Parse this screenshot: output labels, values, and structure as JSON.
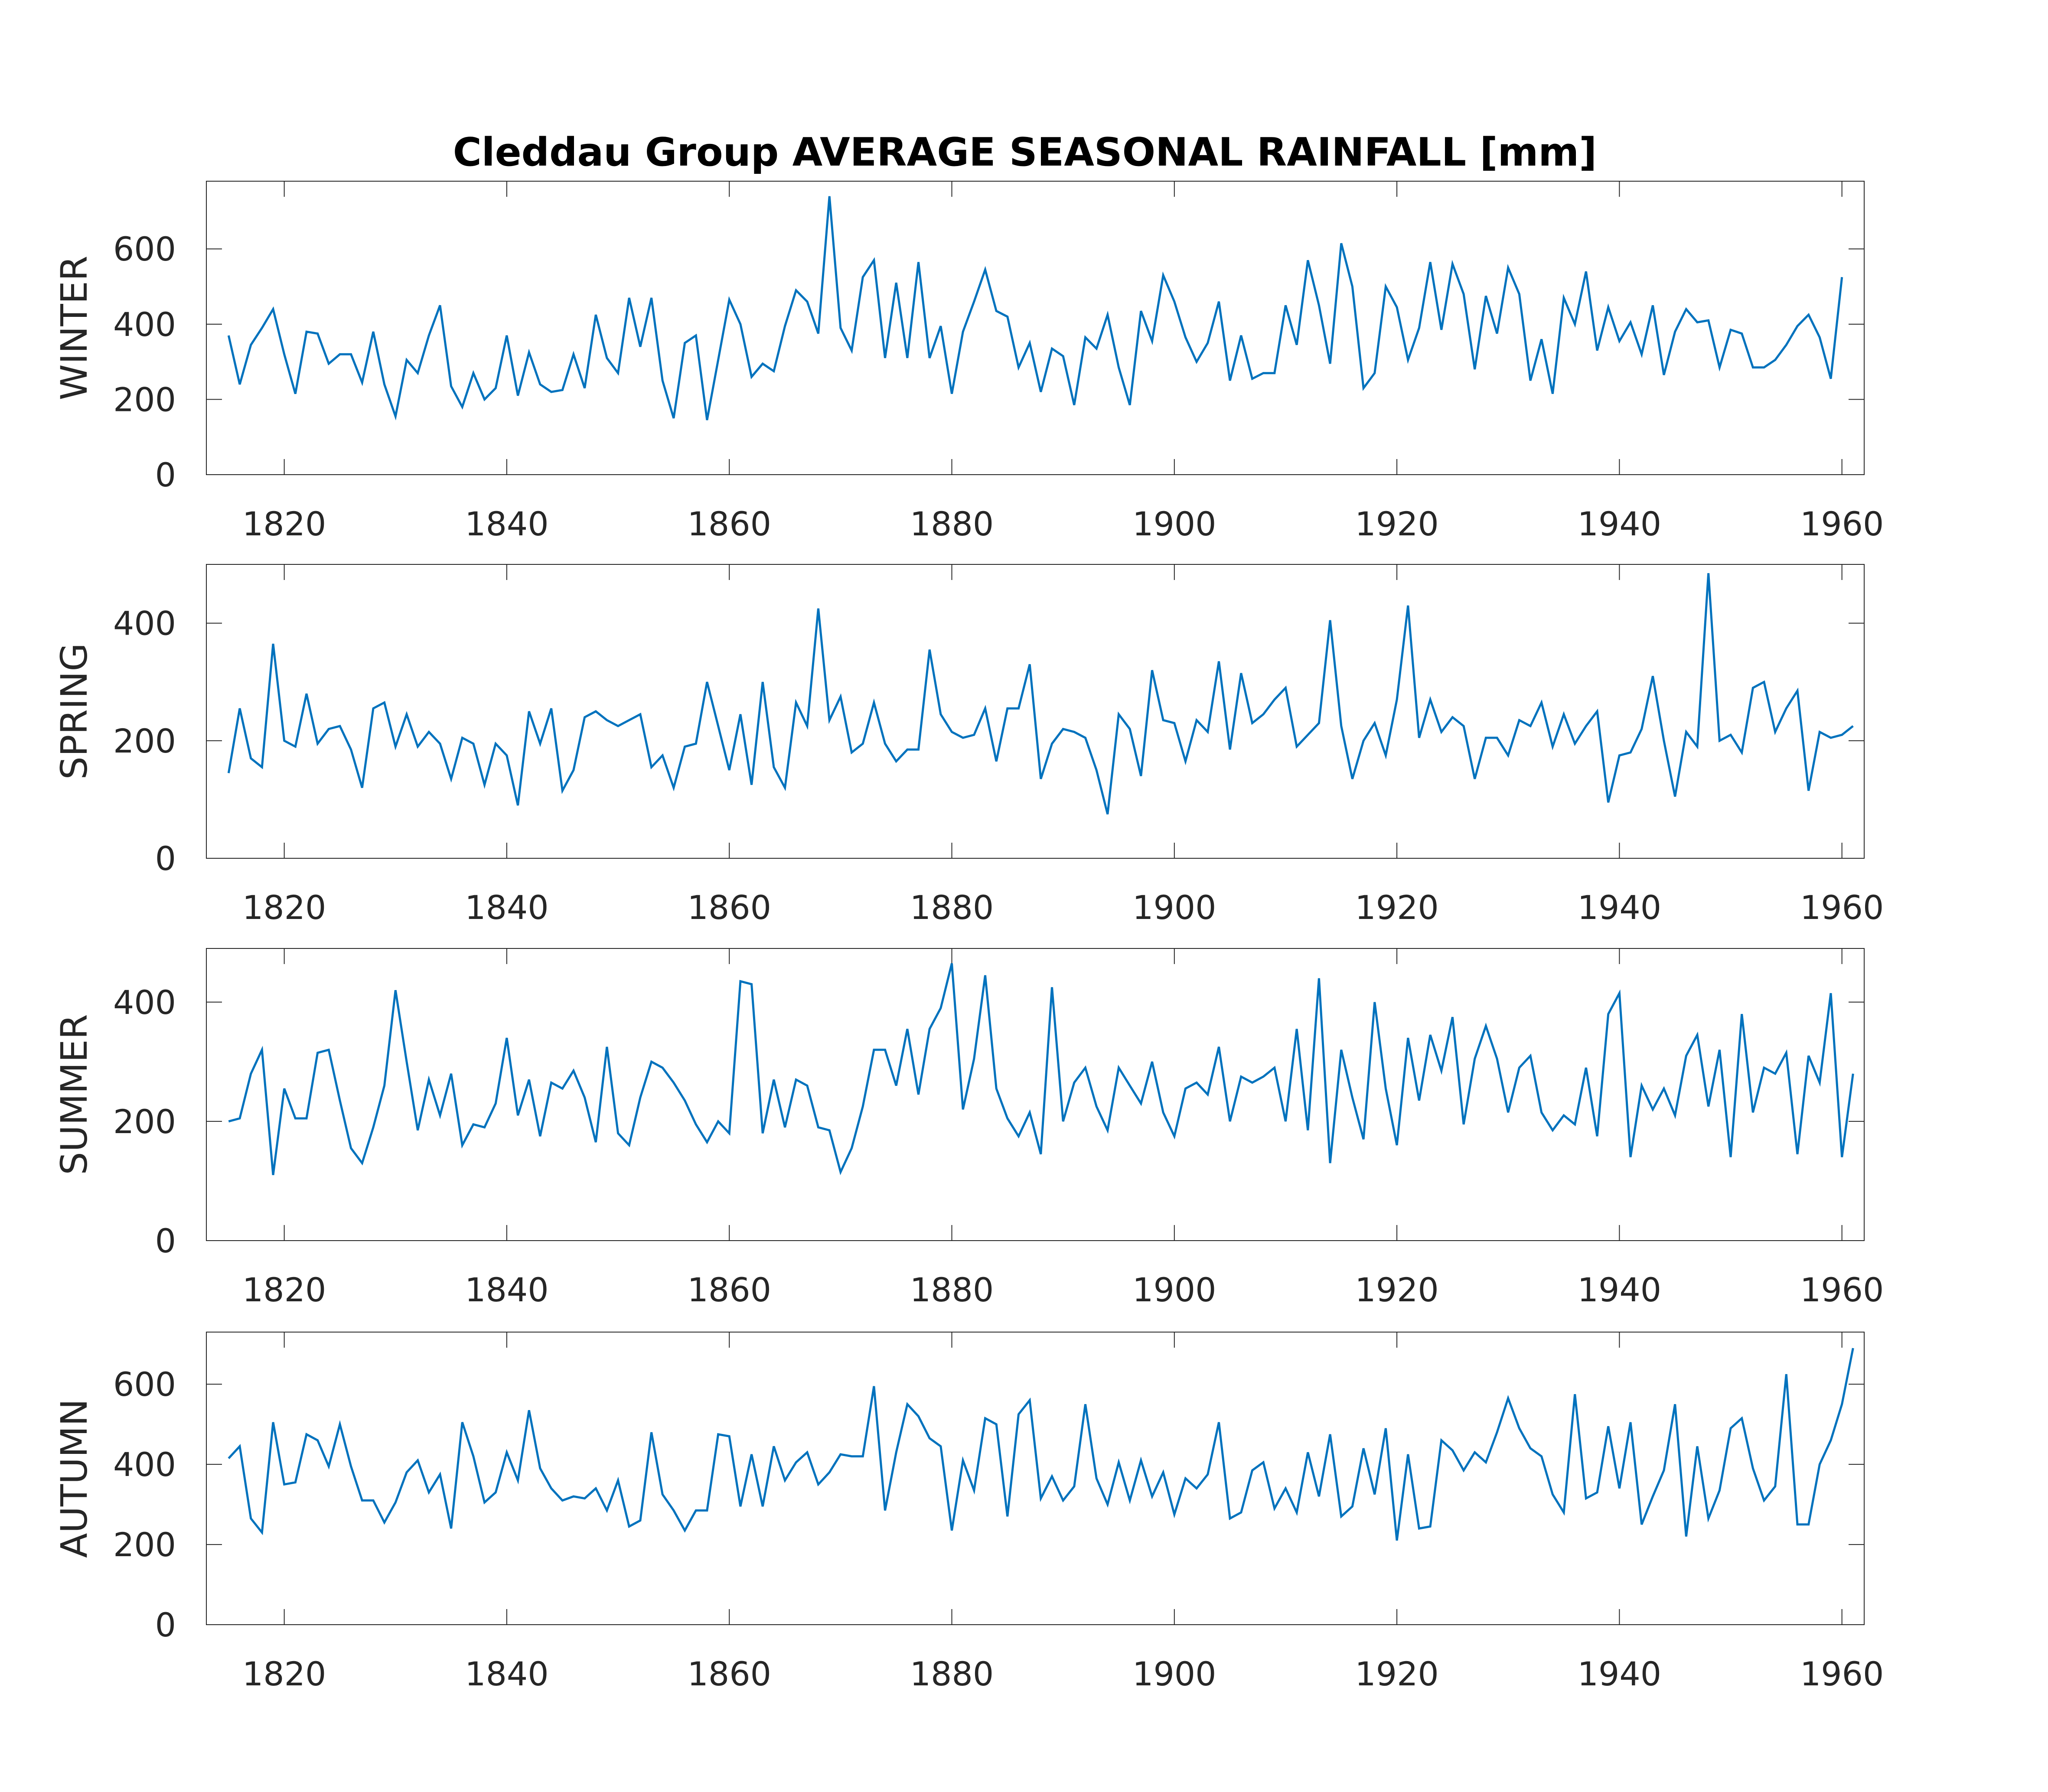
{
  "colors": {
    "series": "#0072bd",
    "axes": "#262626",
    "title": "#000000",
    "background": "#ffffff"
  },
  "chart_data": {
    "type": "line",
    "title": "Cleddau Group AVERAGE SEASONAL RAINFALL [mm]",
    "grid": false,
    "x_start": 1815,
    "x_end": 1960,
    "xlim": [
      1813,
      1962
    ],
    "x_ticks": [
      1820,
      1840,
      1860,
      1880,
      1900,
      1920,
      1940,
      1960
    ],
    "panels": [
      {
        "ylabel": "WINTER",
        "ylim": [
          0,
          780
        ],
        "y_ticks": [
          0,
          200,
          400,
          600
        ],
        "values": [
          370,
          240,
          345,
          390,
          440,
          320,
          215,
          380,
          375,
          295,
          320,
          320,
          245,
          380,
          240,
          155,
          305,
          270,
          370,
          450,
          235,
          180,
          270,
          200,
          230,
          370,
          210,
          325,
          240,
          220,
          225,
          320,
          230,
          425,
          310,
          270,
          470,
          340,
          470,
          250,
          150,
          350,
          370,
          145,
          305,
          465,
          400,
          260,
          295,
          275,
          395,
          490,
          460,
          375,
          740,
          390,
          330,
          525,
          570,
          310,
          510,
          310,
          565,
          310,
          395,
          215,
          380,
          460,
          545,
          435,
          420,
          285,
          350,
          220,
          335,
          315,
          185,
          365,
          335,
          425,
          285,
          185,
          435,
          355,
          530,
          460,
          365,
          300,
          350,
          460,
          250,
          370,
          255,
          270,
          270,
          450,
          345,
          570,
          450,
          295,
          615,
          500,
          230,
          270,
          500,
          445,
          305,
          390,
          565,
          385,
          560,
          480,
          280,
          475,
          375,
          550,
          480,
          250,
          360,
          215,
          470,
          400,
          540,
          330,
          445,
          355,
          405,
          320,
          450,
          265,
          380,
          440,
          405,
          410,
          285,
          385,
          375,
          285,
          285,
          305,
          345,
          395,
          425,
          365,
          255,
          525
        ]
      },
      {
        "ylabel": "SPRING",
        "ylim": [
          0,
          500
        ],
        "y_ticks": [
          0,
          200,
          400
        ],
        "values": [
          145,
          255,
          170,
          155,
          365,
          200,
          190,
          280,
          195,
          220,
          225,
          185,
          120,
          255,
          265,
          190,
          245,
          190,
          215,
          195,
          135,
          205,
          195,
          125,
          195,
          175,
          90,
          250,
          195,
          255,
          115,
          150,
          240,
          250,
          235,
          225,
          235,
          245,
          155,
          175,
          120,
          190,
          195,
          300,
          225,
          150,
          245,
          125,
          300,
          155,
          120,
          265,
          225,
          425,
          235,
          275,
          180,
          195,
          265,
          195,
          165,
          185,
          185,
          355,
          245,
          215,
          205,
          210,
          255,
          165,
          255,
          255,
          330,
          135,
          195,
          220,
          215,
          205,
          150,
          75,
          245,
          220,
          140,
          320,
          235,
          230,
          165,
          235,
          215,
          335,
          185,
          315,
          230,
          245,
          270,
          290,
          190,
          210,
          230,
          405,
          225,
          135,
          200,
          230,
          175,
          270,
          430,
          205,
          270,
          215,
          240,
          225,
          135,
          205,
          205,
          175,
          235,
          225,
          265,
          190,
          245,
          195,
          225,
          250,
          95,
          175,
          180,
          220,
          310,
          200,
          105,
          215,
          190,
          485,
          200,
          210,
          180,
          290,
          300,
          215,
          255,
          285,
          115,
          215,
          205,
          210,
          225
        ]
      },
      {
        "ylabel": "SUMMER",
        "ylim": [
          0,
          490
        ],
        "y_ticks": [
          0,
          200,
          400
        ],
        "values": [
          200,
          205,
          280,
          320,
          110,
          255,
          205,
          205,
          315,
          320,
          235,
          155,
          130,
          190,
          260,
          420,
          300,
          185,
          270,
          210,
          280,
          160,
          195,
          190,
          230,
          340,
          210,
          270,
          175,
          265,
          255,
          285,
          240,
          165,
          325,
          180,
          160,
          240,
          300,
          290,
          265,
          235,
          195,
          165,
          200,
          180,
          435,
          430,
          180,
          270,
          190,
          270,
          260,
          190,
          185,
          115,
          155,
          225,
          320,
          320,
          260,
          355,
          245,
          355,
          390,
          465,
          220,
          305,
          445,
          255,
          205,
          175,
          215,
          145,
          425,
          200,
          265,
          290,
          225,
          185,
          290,
          260,
          230,
          300,
          215,
          175,
          255,
          265,
          245,
          325,
          200,
          275,
          265,
          275,
          290,
          200,
          355,
          185,
          440,
          130,
          320,
          240,
          170,
          400,
          255,
          160,
          340,
          235,
          345,
          285,
          375,
          195,
          305,
          360,
          305,
          215,
          290,
          310,
          215,
          185,
          210,
          195,
          290,
          175,
          380,
          415,
          140,
          260,
          220,
          255,
          210,
          310,
          345,
          225,
          320,
          140,
          380,
          215,
          290,
          280,
          315,
          145,
          310,
          265,
          415,
          140,
          280
        ]
      },
      {
        "ylabel": "AUTUMN",
        "ylim": [
          0,
          730
        ],
        "y_ticks": [
          0,
          200,
          400,
          600
        ],
        "values": [
          415,
          445,
          265,
          230,
          505,
          350,
          355,
          475,
          460,
          395,
          500,
          395,
          310,
          310,
          255,
          305,
          380,
          410,
          330,
          375,
          240,
          505,
          420,
          305,
          330,
          430,
          360,
          535,
          390,
          340,
          310,
          320,
          315,
          340,
          285,
          360,
          245,
          260,
          480,
          325,
          285,
          235,
          285,
          285,
          475,
          470,
          295,
          425,
          295,
          445,
          360,
          405,
          430,
          350,
          380,
          425,
          420,
          420,
          595,
          285,
          430,
          550,
          520,
          465,
          445,
          235,
          410,
          335,
          515,
          500,
          270,
          525,
          560,
          315,
          370,
          310,
          345,
          550,
          365,
          300,
          405,
          310,
          410,
          320,
          380,
          275,
          365,
          340,
          375,
          505,
          265,
          280,
          385,
          405,
          290,
          340,
          280,
          430,
          320,
          475,
          270,
          295,
          440,
          325,
          490,
          210,
          425,
          240,
          245,
          460,
          435,
          385,
          430,
          405,
          480,
          565,
          490,
          440,
          420,
          325,
          280,
          575,
          315,
          330,
          495,
          340,
          505,
          250,
          320,
          385,
          550,
          220,
          445,
          265,
          335,
          490,
          515,
          390,
          310,
          345,
          625,
          250,
          250,
          400,
          460,
          550,
          690
        ]
      }
    ]
  }
}
